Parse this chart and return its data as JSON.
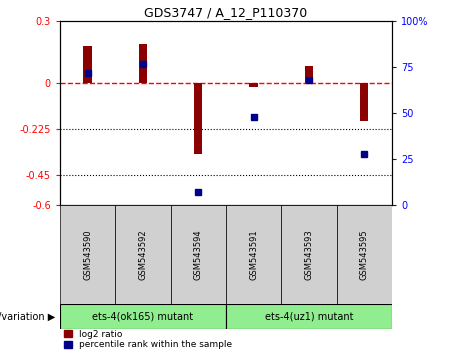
{
  "title": "GDS3747 / A_12_P110370",
  "categories": [
    "GSM543590",
    "GSM543592",
    "GSM543594",
    "GSM543591",
    "GSM543593",
    "GSM543595"
  ],
  "log2_ratio": [
    0.18,
    0.19,
    -0.35,
    -0.02,
    0.08,
    -0.19
  ],
  "percentile_rank": [
    72,
    77,
    7,
    48,
    68,
    28
  ],
  "ylim_left": [
    -0.6,
    0.3
  ],
  "ylim_right": [
    0,
    100
  ],
  "yticks_left": [
    0.3,
    0,
    -0.225,
    -0.45,
    -0.6
  ],
  "ytick_labels_left": [
    "0.3",
    "0",
    "-0.225",
    "-0.45",
    "-0.6"
  ],
  "yticks_right": [
    100,
    75,
    50,
    25,
    0
  ],
  "ytick_labels_right": [
    "100%",
    "75",
    "50",
    "25",
    "0"
  ],
  "hline_y": 0,
  "dotted_lines": [
    -0.225,
    -0.45
  ],
  "group1_label": "ets-4(ok165) mutant",
  "group2_label": "ets-4(uz1) mutant",
  "group1_indices": [
    0,
    1,
    2
  ],
  "group2_indices": [
    3,
    4,
    5
  ],
  "group1_color": "#90EE90",
  "group2_color": "#90EE90",
  "bar_color": "#8B0000",
  "point_color": "#00008B",
  "sample_box_color": "#d0d0d0",
  "bar_width": 0.15,
  "legend_log2": "log2 ratio",
  "legend_pct": "percentile rank within the sample",
  "geno_label": "genotype/variation"
}
